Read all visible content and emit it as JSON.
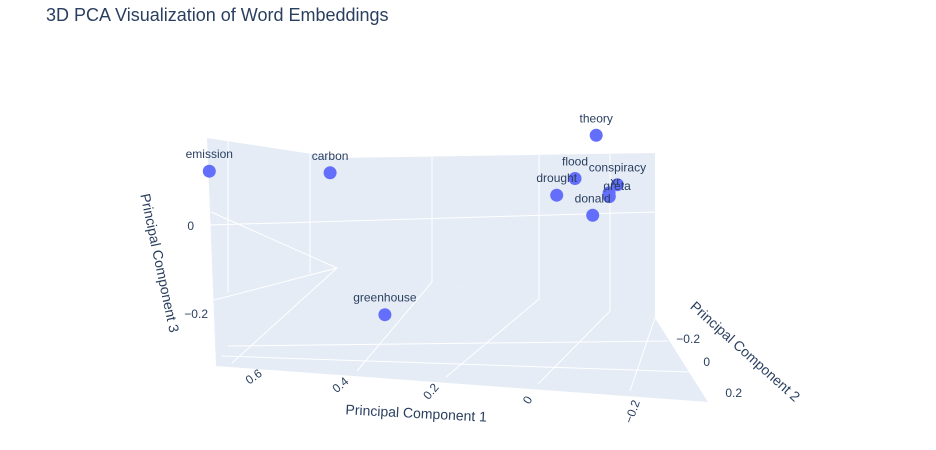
{
  "chart_data": {
    "type": "scatter",
    "title": "3D PCA Visualization of Word Embeddings",
    "xlabel": "Principal Component 1",
    "ylabel": "Principal Component 2",
    "zlabel": "Principal Component 3",
    "grid": true,
    "marker_color": "#636efa",
    "x_ticks": [
      "0.6",
      "0.4",
      "0.2",
      "0",
      "−0.2"
    ],
    "y_ticks": [
      "−0.2",
      "0",
      "0.2"
    ],
    "z_ticks": [
      "0",
      "−0.2"
    ],
    "points": [
      {
        "label": "emission",
        "x": 0.72,
        "y": -0.1,
        "z": 0.15
      },
      {
        "label": "carbon",
        "x": 0.38,
        "y": -0.3,
        "z": 0.08
      },
      {
        "label": "theory",
        "x": -0.25,
        "y": -0.35,
        "z": 0.12
      },
      {
        "label": "flood",
        "x": -0.18,
        "y": -0.3,
        "z": 0.02
      },
      {
        "label": "conspiracy",
        "x": -0.27,
        "y": -0.28,
        "z": 0.0
      },
      {
        "label": "drought",
        "x": -0.12,
        "y": -0.25,
        "z": -0.01
      },
      {
        "label": "greta",
        "x": -0.25,
        "y": -0.28,
        "z": -0.02
      },
      {
        "label": "xr",
        "x": -0.25,
        "y": -0.28,
        "z": -0.03
      },
      {
        "label": "donald",
        "x": -0.2,
        "y": -0.25,
        "z": -0.07
      },
      {
        "label": "greenhouse",
        "x": 0.4,
        "y": 0.1,
        "z": -0.22
      }
    ]
  }
}
